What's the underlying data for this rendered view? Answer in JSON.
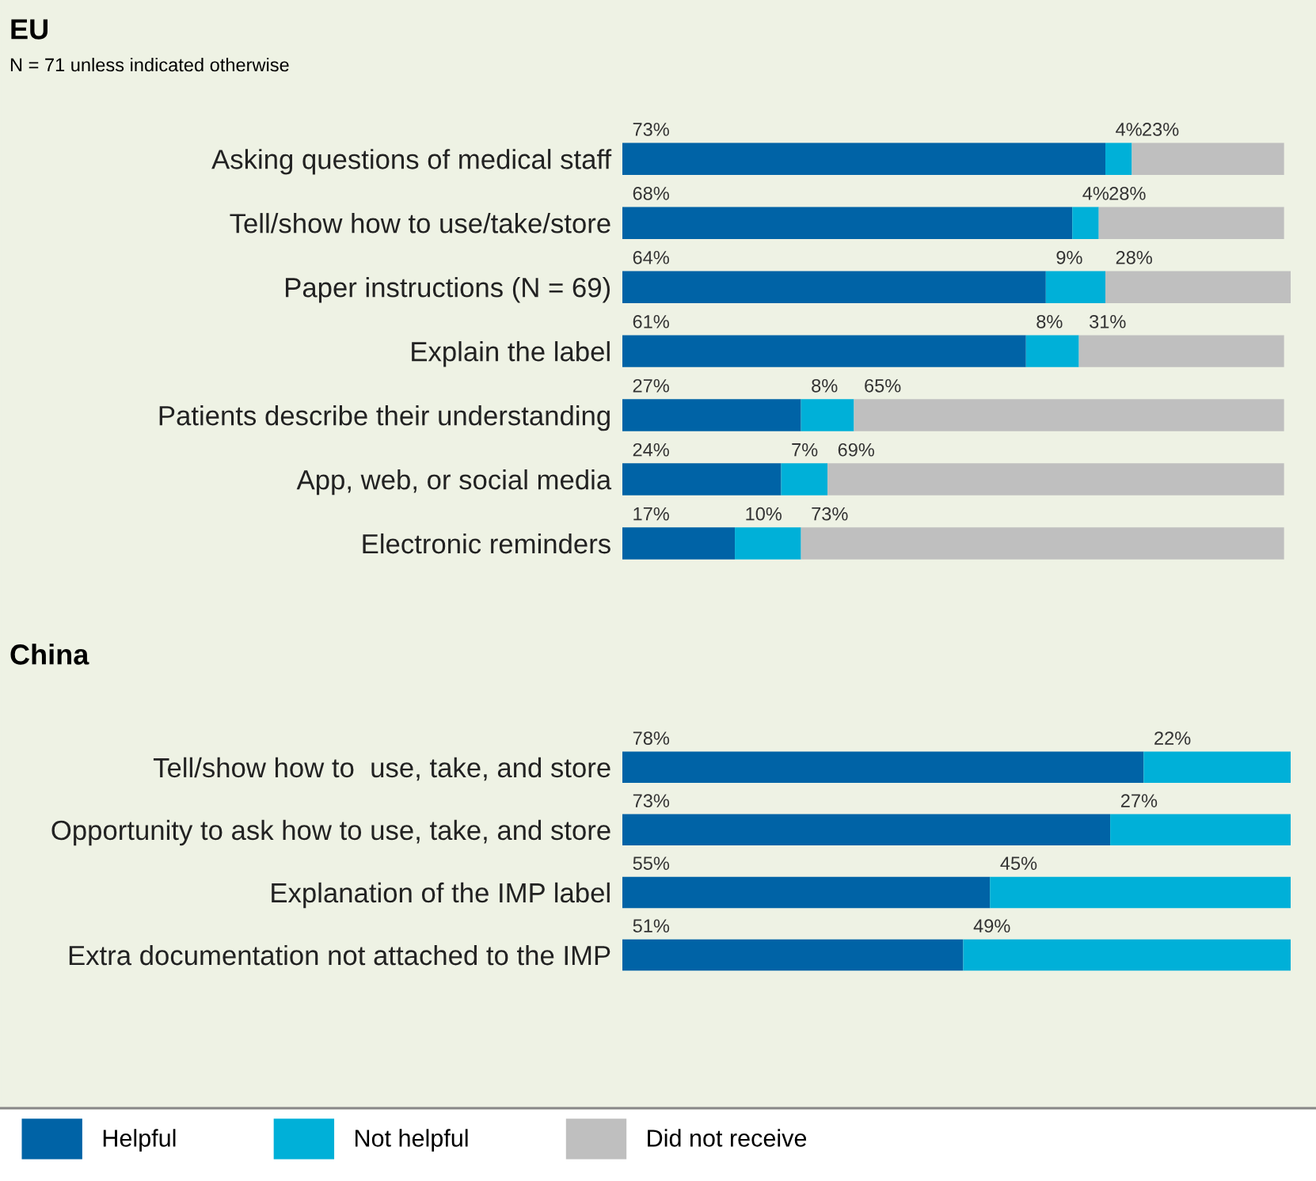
{
  "chart_data": [
    {
      "type": "bar",
      "orientation": "horizontal",
      "stacked": true,
      "title": "EU",
      "subtitle": "N = 71 unless indicated otherwise",
      "legend": "bottom",
      "grid": false,
      "categories": [
        "Asking questions of medical staff",
        "Tell/show how to use/take/store",
        "Paper instructions (N = 69)",
        "Explain the label",
        "Patients describe their understanding",
        "App, web, or social media",
        "Electronic reminders"
      ],
      "series": [
        {
          "name": "Helpful",
          "color": "#0063a6",
          "values": [
            73,
            68,
            64,
            61,
            27,
            24,
            17
          ],
          "value_labels": [
            "73%",
            "68%",
            "64%",
            "61%",
            "27%",
            "24%",
            "17%"
          ]
        },
        {
          "name": "Not helpful",
          "color": "#00b0d8",
          "values": [
            4,
            4,
            9,
            8,
            8,
            7,
            10
          ],
          "value_labels": [
            "4%",
            "4%",
            "9%",
            "8%",
            "8%",
            "7%",
            "10%"
          ]
        },
        {
          "name": "Did not receive",
          "color": "#bfbfbf",
          "values": [
            23,
            28,
            28,
            31,
            65,
            69,
            73
          ],
          "value_labels": [
            "23%",
            "28%",
            "28%",
            "31%",
            "65%",
            "69%",
            "73%"
          ]
        }
      ]
    },
    {
      "type": "bar",
      "orientation": "horizontal",
      "stacked": true,
      "title": "China",
      "grid": false,
      "categories": [
        "Tell/show how to  use, take, and store",
        "Opportunity to ask how to use, take, and store",
        "Explanation of the IMP label",
        "Extra documentation not attached to the IMP"
      ],
      "series": [
        {
          "name": "Helpful",
          "color": "#0063a6",
          "values": [
            78,
            73,
            55,
            51
          ],
          "value_labels": [
            "78%",
            "73%",
            "55%",
            "51%"
          ]
        },
        {
          "name": "Not helpful",
          "color": "#00b0d8",
          "values": [
            22,
            27,
            45,
            49
          ],
          "value_labels": [
            "22%",
            "27%",
            "45%",
            "49%"
          ]
        }
      ]
    }
  ]
}
